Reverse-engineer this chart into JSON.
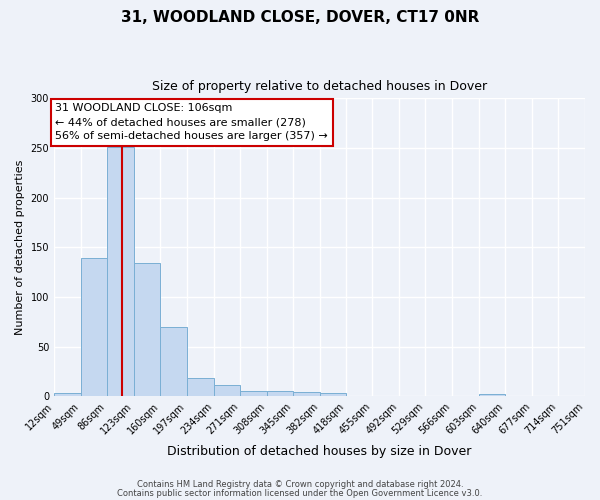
{
  "title1": "31, WOODLAND CLOSE, DOVER, CT17 0NR",
  "title2": "Size of property relative to detached houses in Dover",
  "xlabel": "Distribution of detached houses by size in Dover",
  "ylabel": "Number of detached properties",
  "bin_edges": [
    12,
    49,
    86,
    123,
    160,
    197,
    234,
    271,
    308,
    345,
    382,
    418,
    455,
    492,
    529,
    566,
    603,
    640,
    677,
    714,
    751
  ],
  "bin_counts": [
    3,
    139,
    251,
    134,
    70,
    19,
    11,
    5,
    5,
    4,
    3,
    0,
    0,
    0,
    0,
    0,
    2,
    0,
    0,
    0
  ],
  "bar_color": "#c5d8f0",
  "bar_edge_color": "#7aafd4",
  "vline_x": 106,
  "vline_color": "#cc0000",
  "annotation_text": "31 WOODLAND CLOSE: 106sqm\n← 44% of detached houses are smaller (278)\n56% of semi-detached houses are larger (357) →",
  "annotation_box_color": "#ffffff",
  "annotation_box_edge": "#cc0000",
  "ylim": [
    0,
    300
  ],
  "yticks": [
    0,
    50,
    100,
    150,
    200,
    250,
    300
  ],
  "tick_labels": [
    "12sqm",
    "49sqm",
    "86sqm",
    "123sqm",
    "160sqm",
    "197sqm",
    "234sqm",
    "271sqm",
    "308sqm",
    "345sqm",
    "382sqm",
    "418sqm",
    "455sqm",
    "492sqm",
    "529sqm",
    "566sqm",
    "603sqm",
    "640sqm",
    "677sqm",
    "714sqm",
    "751sqm"
  ],
  "footnote1": "Contains HM Land Registry data © Crown copyright and database right 2024.",
  "footnote2": "Contains public sector information licensed under the Open Government Licence v3.0.",
  "bg_color": "#eef2f9",
  "grid_color": "#ffffff",
  "title1_fontsize": 11,
  "title2_fontsize": 9,
  "xlabel_fontsize": 9,
  "ylabel_fontsize": 8,
  "tick_fontsize": 7,
  "footnote_fontsize": 6,
  "annotation_fontsize": 8
}
